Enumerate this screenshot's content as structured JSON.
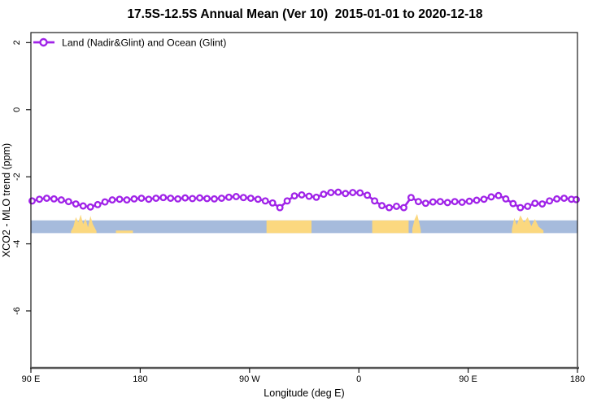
{
  "title": "17.5S-12.5S Annual Mean (Ver 10)  2015-01-01 to 2020-12-18",
  "colors": {
    "series": "#A023E8",
    "marker_fill": "#FFFFFF",
    "ocean_band": "#A6BBDC",
    "land_band": "#FBD87F",
    "text": "#000000",
    "box": "#1a1a1a",
    "bottom_axis": "#555555"
  },
  "chart_data": {
    "type": "line",
    "title": "17.5S-12.5S Annual Mean (Ver 10)  2015-01-01 to 2020-12-18",
    "xlabel": "Longitude (deg E)",
    "ylabel": "XCO2 - MLO trend (ppm)",
    "xlim": [
      90,
      540
    ],
    "ylim": [
      -7.7,
      2.3
    ],
    "grid": false,
    "legend_position": "top-left-inside",
    "x_ticks": [
      {
        "value": 90,
        "label": "90 E"
      },
      {
        "value": 180,
        "label": "180"
      },
      {
        "value": 270,
        "label": "90 W"
      },
      {
        "value": 360,
        "label": "0"
      },
      {
        "value": 450,
        "label": "90 E"
      },
      {
        "value": 540,
        "label": "180"
      }
    ],
    "y_ticks": [
      {
        "value": 2,
        "label": "2"
      },
      {
        "value": 0,
        "label": "0"
      },
      {
        "value": -2,
        "label": "-2"
      },
      {
        "value": -4,
        "label": "-4"
      },
      {
        "value": -6,
        "label": "-6"
      }
    ],
    "series": [
      {
        "name": "Land (Nadir&Glint) and Ocean (Glint)",
        "marker": "open-circle",
        "x": [
          91,
          97,
          103,
          109,
          115,
          121,
          127,
          133,
          139,
          145,
          151,
          157,
          163,
          169,
          175,
          181,
          187,
          193,
          199,
          205,
          211,
          217,
          223,
          229,
          235,
          241,
          247,
          253,
          259,
          265,
          271,
          277,
          283,
          289,
          295,
          301,
          307,
          313,
          319,
          325,
          331,
          337,
          343,
          349,
          355,
          361,
          367,
          373,
          379,
          385,
          391,
          397,
          403,
          409,
          415,
          421,
          427,
          433,
          439,
          445,
          451,
          457,
          463,
          469,
          475,
          481,
          487,
          493,
          499,
          505,
          511,
          517,
          523,
          529,
          535,
          539
        ],
        "y": [
          -2.72,
          -2.67,
          -2.64,
          -2.66,
          -2.69,
          -2.74,
          -2.81,
          -2.87,
          -2.9,
          -2.83,
          -2.75,
          -2.69,
          -2.67,
          -2.69,
          -2.66,
          -2.64,
          -2.67,
          -2.64,
          -2.62,
          -2.64,
          -2.66,
          -2.63,
          -2.65,
          -2.63,
          -2.65,
          -2.66,
          -2.64,
          -2.61,
          -2.59,
          -2.62,
          -2.64,
          -2.67,
          -2.72,
          -2.78,
          -2.92,
          -2.72,
          -2.57,
          -2.54,
          -2.58,
          -2.61,
          -2.52,
          -2.47,
          -2.46,
          -2.5,
          -2.47,
          -2.48,
          -2.55,
          -2.72,
          -2.86,
          -2.92,
          -2.88,
          -2.92,
          -2.62,
          -2.74,
          -2.79,
          -2.75,
          -2.74,
          -2.77,
          -2.74,
          -2.76,
          -2.73,
          -2.7,
          -2.67,
          -2.6,
          -2.56,
          -2.66,
          -2.8,
          -2.92,
          -2.88,
          -2.79,
          -2.81,
          -2.72,
          -2.66,
          -2.64,
          -2.67,
          -2.68
        ]
      }
    ],
    "surface_band": {
      "description": "surface type strip along latitude band: blue = ocean, orange = land topography",
      "y_top": -3.3,
      "y_bottom": -3.68,
      "land_segments": [
        {
          "name": "australia-west",
          "profile": [
            [
              123,
              0.15
            ],
            [
              125,
              0.5
            ],
            [
              127,
              1.25
            ],
            [
              129,
              0.85
            ],
            [
              131,
              1.45
            ],
            [
              133,
              0.7
            ],
            [
              135,
              1.15
            ],
            [
              137,
              0.45
            ],
            [
              139,
              1.35
            ],
            [
              141,
              0.7
            ],
            [
              144,
              0.15
            ]
          ]
        },
        {
          "name": "pacific-islands",
          "profile": [
            [
              160,
              0.2
            ],
            [
              174,
              0.2
            ]
          ]
        },
        {
          "name": "south-america",
          "profile": [
            [
              284,
              1
            ],
            [
              321,
              1
            ]
          ]
        },
        {
          "name": "africa",
          "profile": [
            [
              371,
              1
            ],
            [
              401,
              1
            ]
          ]
        },
        {
          "name": "madagascar",
          "profile": [
            [
              404,
              0.35
            ],
            [
              406,
              1.1
            ],
            [
              408,
              1.5
            ],
            [
              410,
              0.7
            ],
            [
              411,
              0.25
            ]
          ]
        },
        {
          "name": "australia-east",
          "profile": [
            [
              486,
              0.3
            ],
            [
              488,
              1.2
            ],
            [
              490,
              0.65
            ],
            [
              493,
              1.4
            ],
            [
              496,
              0.85
            ],
            [
              499,
              1.25
            ],
            [
              502,
              0.55
            ],
            [
              505,
              1.1
            ],
            [
              508,
              0.5
            ],
            [
              512,
              0.2
            ]
          ]
        }
      ]
    }
  }
}
